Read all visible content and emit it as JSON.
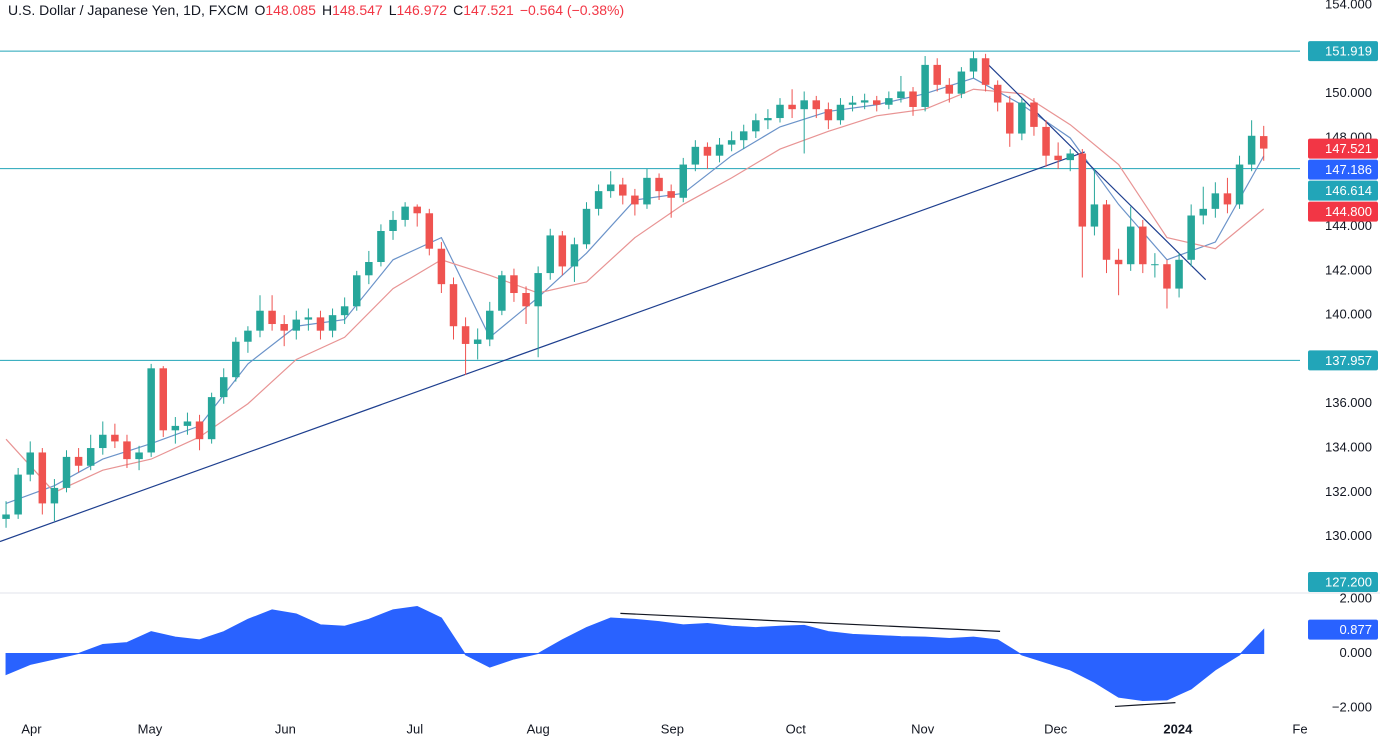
{
  "chart_data": {
    "type": "candlestick",
    "title": "U.S. Dollar / Japanese Yen, 1D, FXCM",
    "ohlc_labels": [
      "O",
      "H",
      "L",
      "C"
    ],
    "change": "−0.564 (−0.38%)",
    "up_color": "#26a69a",
    "down_color": "#ef5350",
    "grid": false,
    "xlim": [
      -0.5,
      107
    ],
    "xticks": [
      {
        "value": 2.1,
        "label": "Apr"
      },
      {
        "value": 11.9,
        "label": "May"
      },
      {
        "value": 23.1,
        "label": "Jun"
      },
      {
        "value": 33.8,
        "label": "Jul"
      },
      {
        "value": 44,
        "label": "Aug"
      },
      {
        "value": 55.1,
        "label": "Sep"
      },
      {
        "value": 65.3,
        "label": "Oct"
      },
      {
        "value": 75.8,
        "label": "Nov"
      },
      {
        "value": 86.8,
        "label": "Dec"
      },
      {
        "value": 96.9,
        "label": "2024",
        "bold": true
      },
      {
        "value": 107,
        "label": "Fe"
      }
    ],
    "ylim": [
      127.5,
      154.23
    ],
    "yticks": [
      {
        "value": 154,
        "label": "154.000"
      },
      {
        "value": 150,
        "label": "150.000"
      },
      {
        "value": 148,
        "label": "148.000"
      },
      {
        "value": 144,
        "label": "144.000"
      },
      {
        "value": 142,
        "label": "142.000"
      },
      {
        "value": 140,
        "label": "140.000"
      },
      {
        "value": 136,
        "label": "136.000"
      },
      {
        "value": 134,
        "label": "134.000"
      },
      {
        "value": 132,
        "label": "132.000"
      },
      {
        "value": 130,
        "label": "130.000"
      }
    ],
    "candles": [
      [
        130.8,
        131.6,
        130.4,
        131.0
      ],
      [
        131.0,
        133.1,
        130.8,
        132.8
      ],
      [
        132.8,
        134.3,
        132.5,
        133.8
      ],
      [
        133.8,
        134.0,
        131.0,
        131.5
      ],
      [
        131.5,
        132.6,
        130.7,
        132.2
      ],
      [
        132.2,
        133.9,
        132.0,
        133.6
      ],
      [
        133.6,
        134.0,
        132.9,
        133.2
      ],
      [
        133.2,
        134.6,
        133.0,
        134.0
      ],
      [
        134.0,
        135.2,
        133.7,
        134.6
      ],
      [
        134.6,
        135.1,
        134.0,
        134.3
      ],
      [
        134.3,
        134.6,
        133.1,
        133.5
      ],
      [
        133.5,
        134.1,
        133.0,
        133.8
      ],
      [
        133.8,
        137.8,
        133.6,
        137.6
      ],
      [
        137.6,
        137.7,
        134.5,
        134.8
      ],
      [
        134.8,
        135.4,
        134.2,
        135.0
      ],
      [
        135.0,
        135.6,
        134.6,
        135.2
      ],
      [
        135.2,
        135.5,
        133.9,
        134.4
      ],
      [
        134.4,
        136.5,
        134.2,
        136.3
      ],
      [
        136.3,
        137.6,
        136.0,
        137.2
      ],
      [
        137.2,
        139.0,
        137.0,
        138.8
      ],
      [
        138.8,
        139.5,
        138.3,
        139.3
      ],
      [
        139.3,
        140.9,
        139.0,
        140.2
      ],
      [
        140.2,
        140.9,
        139.3,
        139.6
      ],
      [
        139.6,
        140.0,
        138.6,
        139.3
      ],
      [
        139.3,
        140.2,
        138.9,
        139.8
      ],
      [
        139.8,
        140.3,
        139.3,
        139.9
      ],
      [
        139.9,
        140.2,
        138.9,
        139.3
      ],
      [
        139.3,
        140.3,
        139.0,
        140.0
      ],
      [
        140.0,
        140.8,
        139.6,
        140.4
      ],
      [
        140.4,
        142.0,
        140.2,
        141.8
      ],
      [
        141.8,
        142.9,
        141.4,
        142.4
      ],
      [
        142.4,
        144.1,
        142.2,
        143.8
      ],
      [
        143.8,
        144.7,
        143.4,
        144.3
      ],
      [
        144.3,
        145.1,
        144.0,
        144.9
      ],
      [
        144.9,
        145.0,
        144.0,
        144.6
      ],
      [
        144.6,
        144.8,
        142.7,
        143.0
      ],
      [
        143.0,
        143.3,
        141.0,
        141.4
      ],
      [
        141.4,
        141.7,
        138.9,
        139.5
      ],
      [
        139.5,
        139.9,
        137.3,
        138.7
      ],
      [
        138.7,
        139.4,
        138.0,
        138.9
      ],
      [
        138.9,
        140.6,
        138.6,
        140.2
      ],
      [
        140.2,
        142.0,
        140.0,
        141.8
      ],
      [
        141.8,
        142.1,
        140.6,
        141.0
      ],
      [
        141.0,
        141.3,
        139.6,
        140.4
      ],
      [
        140.4,
        142.2,
        138.1,
        141.9
      ],
      [
        141.9,
        143.9,
        141.6,
        143.6
      ],
      [
        143.6,
        143.8,
        141.8,
        142.2
      ],
      [
        142.2,
        143.5,
        141.5,
        143.2
      ],
      [
        143.2,
        145.1,
        143.0,
        144.8
      ],
      [
        144.8,
        145.9,
        144.5,
        145.6
      ],
      [
        145.6,
        146.5,
        145.3,
        145.9
      ],
      [
        145.9,
        146.2,
        145.0,
        145.4
      ],
      [
        145.4,
        145.7,
        144.5,
        145.0
      ],
      [
        145.0,
        146.6,
        144.8,
        146.2
      ],
      [
        146.2,
        146.4,
        145.2,
        145.6
      ],
      [
        145.6,
        145.9,
        144.4,
        145.3
      ],
      [
        145.3,
        147.1,
        145.1,
        146.8
      ],
      [
        146.8,
        147.9,
        146.5,
        147.6
      ],
      [
        147.6,
        147.8,
        146.6,
        147.2
      ],
      [
        147.2,
        148.0,
        146.9,
        147.7
      ],
      [
        147.7,
        148.3,
        147.4,
        147.9
      ],
      [
        147.9,
        148.6,
        147.5,
        148.3
      ],
      [
        148.3,
        149.1,
        148.0,
        148.8
      ],
      [
        148.8,
        149.3,
        148.4,
        148.9
      ],
      [
        148.9,
        149.8,
        148.7,
        149.5
      ],
      [
        149.5,
        150.2,
        148.9,
        149.3
      ],
      [
        149.3,
        150.1,
        147.3,
        149.7
      ],
      [
        149.7,
        149.9,
        148.9,
        149.3
      ],
      [
        149.3,
        149.6,
        148.4,
        148.8
      ],
      [
        148.8,
        149.8,
        148.6,
        149.5
      ],
      [
        149.5,
        149.9,
        149.2,
        149.6
      ],
      [
        149.6,
        150.0,
        149.3,
        149.7
      ],
      [
        149.7,
        149.9,
        149.2,
        149.5
      ],
      [
        149.5,
        150.1,
        149.3,
        149.8
      ],
      [
        149.8,
        150.8,
        149.6,
        150.1
      ],
      [
        150.1,
        150.3,
        149.0,
        149.4
      ],
      [
        149.4,
        151.7,
        149.2,
        151.3
      ],
      [
        151.3,
        151.6,
        150.1,
        150.4
      ],
      [
        150.4,
        150.7,
        149.6,
        150.0
      ],
      [
        150.0,
        151.2,
        149.8,
        151.0
      ],
      [
        151.0,
        151.9,
        150.7,
        151.6
      ],
      [
        151.6,
        151.8,
        150.1,
        150.4
      ],
      [
        150.4,
        150.6,
        149.2,
        149.6
      ],
      [
        149.6,
        149.9,
        147.6,
        148.2
      ],
      [
        148.2,
        149.8,
        147.9,
        149.6
      ],
      [
        149.6,
        149.8,
        148.1,
        148.5
      ],
      [
        148.5,
        148.8,
        146.7,
        147.2
      ],
      [
        147.2,
        147.8,
        146.6,
        147.0
      ],
      [
        147.0,
        147.5,
        146.5,
        147.3
      ],
      [
        147.3,
        147.5,
        141.7,
        144.0
      ],
      [
        144.0,
        146.6,
        143.6,
        145.0
      ],
      [
        145.0,
        145.2,
        141.9,
        142.5
      ],
      [
        142.5,
        143.0,
        140.9,
        142.3
      ],
      [
        142.3,
        144.9,
        142.0,
        144.0
      ],
      [
        144.0,
        144.3,
        141.9,
        142.3
      ],
      [
        142.3,
        142.8,
        141.7,
        142.3
      ],
      [
        142.3,
        142.5,
        140.3,
        141.2
      ],
      [
        141.2,
        142.8,
        140.8,
        142.5
      ],
      [
        142.5,
        145.0,
        142.2,
        144.5
      ],
      [
        144.5,
        145.8,
        144.1,
        144.8
      ],
      [
        144.8,
        146.0,
        144.4,
        145.5
      ],
      [
        145.5,
        146.2,
        144.6,
        145.0
      ],
      [
        145.0,
        147.2,
        144.8,
        146.8
      ],
      [
        146.8,
        148.8,
        146.5,
        148.1
      ],
      [
        148.085,
        148.547,
        146.972,
        147.521
      ]
    ],
    "last_label_colors": {
      "up": "#089981",
      "down": "#f23645"
    },
    "moving_averages": [
      {
        "color": "#6b93c9",
        "label_color": "#2962ff",
        "x": [
          0,
          4,
          8,
          12,
          16,
          20,
          24,
          28,
          32,
          36,
          40,
          44,
          48,
          52,
          56,
          60,
          64,
          68,
          72,
          76,
          80,
          84,
          88,
          92,
          96,
          100,
          104
        ],
        "values": [
          131.5,
          132.3,
          133.5,
          134.2,
          135.0,
          137.8,
          139.5,
          139.8,
          142.5,
          143.5,
          139.0,
          140.8,
          142.8,
          145.2,
          145.5,
          147.2,
          148.5,
          149.2,
          149.5,
          150.0,
          150.7,
          149.5,
          148.0,
          145.0,
          142.5,
          143.3,
          147.186
        ]
      },
      {
        "color": "#e89494",
        "label_color": "#f23645",
        "x": [
          0,
          4,
          8,
          12,
          16,
          20,
          24,
          28,
          32,
          36,
          40,
          44,
          48,
          52,
          56,
          60,
          64,
          68,
          72,
          76,
          80,
          84,
          88,
          92,
          96,
          100,
          104
        ],
        "values": [
          134.4,
          132.0,
          133.0,
          133.5,
          134.5,
          136.0,
          138.0,
          139.0,
          141.2,
          142.5,
          141.8,
          141.0,
          141.5,
          143.5,
          145.0,
          146.2,
          147.5,
          148.3,
          149.0,
          149.3,
          150.2,
          150.0,
          148.6,
          146.8,
          143.5,
          143.0,
          144.8
        ],
        "last_value_label": "144.800"
      }
    ],
    "levels": [
      {
        "value": 151.919,
        "color": "#22a5b8"
      },
      {
        "value": 146.614,
        "color": "#22a5b8"
      },
      {
        "value": 137.957,
        "color": "#22a5b8"
      },
      {
        "value": 127.2,
        "label": "127.200",
        "color": "#22a5b8"
      }
    ],
    "trendlines": [
      {
        "x": [
          -0.5,
          89.2
        ],
        "y": [
          129.78,
          147.37
        ],
        "color": "#1e3f8f"
      },
      {
        "x": [
          81.0,
          99.2
        ],
        "y": [
          151.43,
          141.6
        ],
        "color": "#1e3f8f"
      }
    ],
    "indicator": {
      "type": "area",
      "color": "#2962ff",
      "label_color": "#2962ff",
      "ylim": [
        -2.29,
        2.18
      ],
      "yticks": [
        {
          "value": 2,
          "label": "2.000"
        },
        {
          "value": 0,
          "label": "0.000"
        },
        {
          "value": -2,
          "label": "−2.000"
        }
      ],
      "x": [
        0,
        2,
        4,
        6,
        8,
        10,
        12,
        14,
        16,
        18,
        20,
        22,
        24,
        26,
        28,
        30,
        32,
        34,
        36,
        38,
        40,
        42,
        44,
        46,
        48,
        50,
        52,
        54,
        56,
        58,
        60,
        62,
        64,
        66,
        68,
        70,
        72,
        74,
        76,
        78,
        80,
        82,
        84,
        86,
        88,
        90,
        92,
        94,
        96,
        98,
        100,
        102,
        104
      ],
      "values": [
        -0.77,
        -0.4,
        -0.2,
        0.0,
        0.33,
        0.4,
        0.8,
        0.6,
        0.5,
        0.8,
        1.25,
        1.6,
        1.45,
        1.05,
        1.0,
        1.25,
        1.6,
        1.72,
        1.3,
        -0.05,
        -0.5,
        -0.2,
        0.0,
        0.5,
        0.95,
        1.3,
        1.25,
        1.17,
        1.05,
        1.1,
        1.0,
        0.95,
        1.0,
        1.03,
        0.8,
        0.7,
        0.66,
        0.62,
        0.6,
        0.55,
        0.6,
        0.5,
        -0.05,
        -0.33,
        -0.6,
        -1.05,
        -1.6,
        -1.72,
        -1.7,
        -1.3,
        -0.6,
        -0.05,
        0.877
      ],
      "trendlines": [
        {
          "x": [
            50.8,
            82.2
          ],
          "y": [
            1.47,
            0.81
          ],
          "color": "#131722"
        },
        {
          "x": [
            91.7,
            96.7
          ],
          "y": [
            -1.94,
            -1.8
          ],
          "color": "#131722"
        }
      ]
    }
  }
}
